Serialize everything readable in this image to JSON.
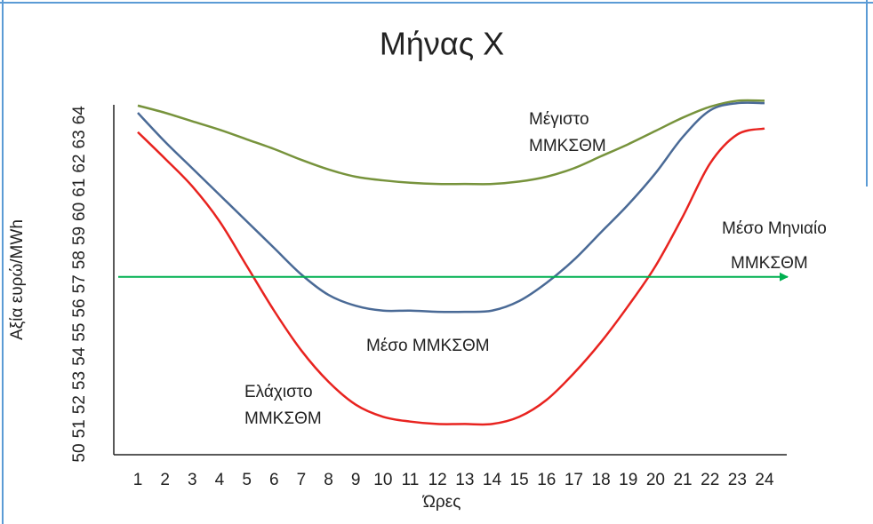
{
  "chart_data": {
    "type": "line",
    "title": "Μήνας Χ",
    "x_label": "Ώρες",
    "y_label": "Αξία ευρώ/MWh",
    "categories": [
      "1",
      "2",
      "3",
      "4",
      "5",
      "6",
      "7",
      "8",
      "9",
      "10",
      "11",
      "12",
      "13",
      "14",
      "15",
      "16",
      "17",
      "18",
      "19",
      "20",
      "21",
      "22",
      "23",
      "24"
    ],
    "ylim": [
      50,
      64.8
    ],
    "yticks": [
      50,
      51,
      52,
      53,
      54,
      55,
      56,
      57,
      58,
      59,
      60,
      61,
      62,
      63,
      64
    ],
    "grid": false,
    "series": [
      {
        "name": [
          "Μέγιστο",
          "ΜΜΚΣΘΜ"
        ],
        "color": "#77933c",
        "values": [
          64.4,
          64.1,
          63.75,
          63.4,
          63.0,
          62.6,
          62.15,
          61.75,
          61.45,
          61.3,
          61.2,
          61.15,
          61.15,
          61.15,
          61.25,
          61.45,
          61.8,
          62.3,
          62.8,
          63.35,
          63.9,
          64.35,
          64.6,
          64.6
        ]
      },
      {
        "name": [
          "Μέσο ΜΜΚΣΘΜ"
        ],
        "color": "#4a6a96",
        "values": [
          64.1,
          62.9,
          61.8,
          60.7,
          59.6,
          58.5,
          57.4,
          56.55,
          56.1,
          55.9,
          55.9,
          55.85,
          55.85,
          55.9,
          56.3,
          57.05,
          58.0,
          59.15,
          60.3,
          61.6,
          63.1,
          64.2,
          64.5,
          64.5
        ]
      },
      {
        "name": [
          "Ελάχιστο",
          "ΜΜΚΣΘΜ"
        ],
        "color": "#e8231f",
        "values": [
          63.3,
          62.2,
          61.05,
          59.6,
          57.75,
          55.9,
          54.25,
          52.95,
          52.0,
          51.5,
          51.3,
          51.2,
          51.2,
          51.2,
          51.5,
          52.2,
          53.3,
          54.6,
          56.1,
          57.75,
          59.8,
          62.0,
          63.2,
          63.45
        ]
      }
    ],
    "reference_line": {
      "name": [
        "Μέσο Μηνιαίο",
        "ΜΜΚΣΘΜ"
      ],
      "value": 57.3,
      "color": "#00b050"
    }
  }
}
